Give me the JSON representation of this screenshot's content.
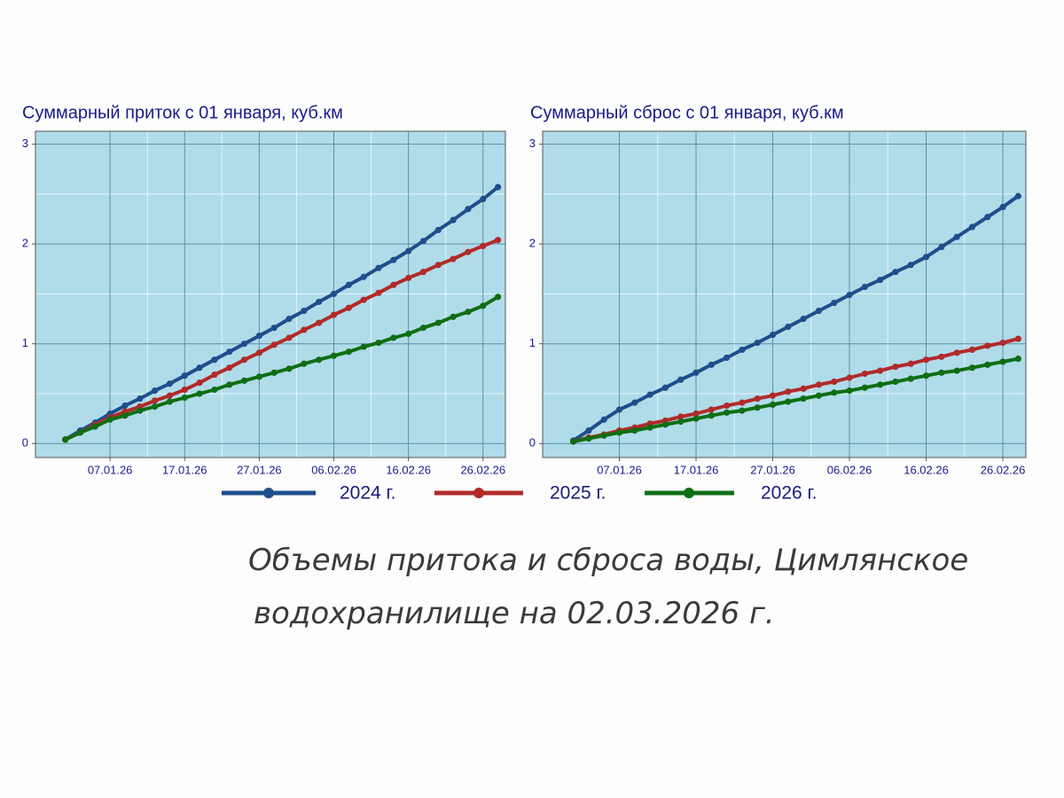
{
  "chart_data": [
    {
      "type": "line",
      "title": "Суммарный приток с 01 января, куб.км",
      "x": [
        "01.01.26",
        "03.01.26",
        "05.01.26",
        "07.01.26",
        "09.01.26",
        "11.01.26",
        "13.01.26",
        "15.01.26",
        "17.01.26",
        "19.01.26",
        "21.01.26",
        "23.01.26",
        "25.01.26",
        "27.01.26",
        "29.01.26",
        "31.01.26",
        "02.02.26",
        "04.02.26",
        "06.02.26",
        "08.02.26",
        "10.02.26",
        "12.02.26",
        "14.02.26",
        "16.02.26",
        "18.02.26",
        "20.02.26",
        "22.02.26",
        "24.02.26",
        "26.02.26",
        "28.02.26"
      ],
      "xlim": [
        "28.12.25",
        "01.03.26"
      ],
      "xticks": [
        "07.01.26",
        "17.01.26",
        "27.01.26",
        "06.02.26",
        "16.02.26",
        "26.02.26"
      ],
      "ylim": [
        -0.14,
        3.13
      ],
      "yticks": [
        0,
        1,
        2,
        3
      ],
      "grid": true,
      "series": [
        {
          "name": "2024 г.",
          "color": "#1f4e8c",
          "values": [
            0.04,
            0.13,
            0.21,
            0.3,
            0.38,
            0.45,
            0.53,
            0.6,
            0.68,
            0.76,
            0.84,
            0.92,
            1.0,
            1.08,
            1.16,
            1.25,
            1.33,
            1.42,
            1.5,
            1.59,
            1.67,
            1.76,
            1.84,
            1.93,
            2.03,
            2.14,
            2.24,
            2.35,
            2.45,
            2.57
          ]
        },
        {
          "name": "2025 г.",
          "color": "#b22a2a",
          "values": [
            0.04,
            0.11,
            0.19,
            0.26,
            0.32,
            0.37,
            0.43,
            0.48,
            0.54,
            0.61,
            0.69,
            0.76,
            0.84,
            0.91,
            0.99,
            1.06,
            1.14,
            1.21,
            1.29,
            1.36,
            1.44,
            1.51,
            1.59,
            1.66,
            1.72,
            1.79,
            1.85,
            1.92,
            1.98,
            2.04
          ]
        },
        {
          "name": "2026 г.",
          "color": "#0f6e14",
          "values": [
            0.04,
            0.11,
            0.17,
            0.24,
            0.28,
            0.33,
            0.37,
            0.42,
            0.46,
            0.5,
            0.54,
            0.59,
            0.63,
            0.67,
            0.71,
            0.75,
            0.8,
            0.84,
            0.88,
            0.92,
            0.97,
            1.01,
            1.06,
            1.1,
            1.16,
            1.21,
            1.27,
            1.32,
            1.38,
            1.47
          ]
        }
      ]
    },
    {
      "type": "line",
      "title": "Суммарный сброс с 01 января, куб.км",
      "x": [
        "01.01.26",
        "03.01.26",
        "05.01.26",
        "07.01.26",
        "09.01.26",
        "11.01.26",
        "13.01.26",
        "15.01.26",
        "17.01.26",
        "19.01.26",
        "21.01.26",
        "23.01.26",
        "25.01.26",
        "27.01.26",
        "29.01.26",
        "31.01.26",
        "02.02.26",
        "04.02.26",
        "06.02.26",
        "08.02.26",
        "10.02.26",
        "12.02.26",
        "14.02.26",
        "16.02.26",
        "18.02.26",
        "20.02.26",
        "22.02.26",
        "24.02.26",
        "26.02.26",
        "28.02.26"
      ],
      "xlim": [
        "28.12.25",
        "01.03.26"
      ],
      "xticks": [
        "07.01.26",
        "17.01.26",
        "27.01.26",
        "06.02.26",
        "16.02.26",
        "26.02.26"
      ],
      "ylim": [
        -0.14,
        3.13
      ],
      "yticks": [
        0,
        1,
        2,
        3
      ],
      "grid": true,
      "series": [
        {
          "color": "#1f4e8c",
          "values": [
            0.03,
            0.13,
            0.24,
            0.34,
            0.41,
            0.49,
            0.56,
            0.64,
            0.71,
            0.79,
            0.86,
            0.94,
            1.01,
            1.09,
            1.17,
            1.25,
            1.33,
            1.41,
            1.49,
            1.57,
            1.64,
            1.72,
            1.79,
            1.87,
            1.97,
            2.07,
            2.17,
            2.27,
            2.37,
            2.48
          ]
        },
        {
          "color": "#b22a2a",
          "values": [
            0.02,
            0.06,
            0.09,
            0.13,
            0.16,
            0.2,
            0.23,
            0.27,
            0.3,
            0.34,
            0.38,
            0.41,
            0.45,
            0.48,
            0.52,
            0.55,
            0.59,
            0.62,
            0.66,
            0.7,
            0.73,
            0.77,
            0.8,
            0.84,
            0.87,
            0.91,
            0.94,
            0.98,
            1.01,
            1.05
          ]
        },
        {
          "color": "#0f6e14",
          "values": [
            0.02,
            0.05,
            0.08,
            0.11,
            0.13,
            0.16,
            0.19,
            0.22,
            0.25,
            0.28,
            0.31,
            0.33,
            0.36,
            0.39,
            0.42,
            0.45,
            0.48,
            0.51,
            0.53,
            0.56,
            0.59,
            0.62,
            0.65,
            0.68,
            0.71,
            0.73,
            0.76,
            0.79,
            0.82,
            0.85
          ]
        }
      ]
    }
  ],
  "caption": [
    "Объемы притока и сброса воды, Цимлянское",
    "водохранилище на 02.03.2026 г."
  ]
}
